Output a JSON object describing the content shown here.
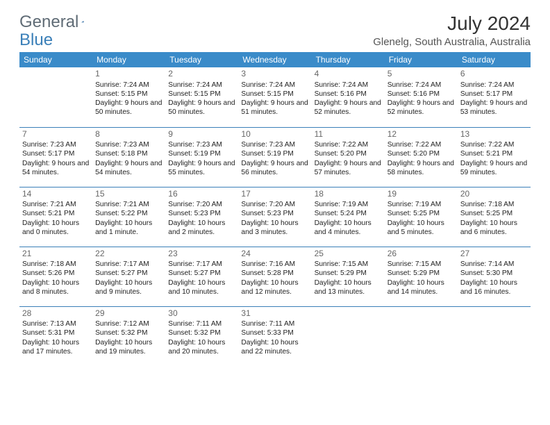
{
  "logo": {
    "part1": "General",
    "part2": "Blue"
  },
  "title": "July 2024",
  "location": "Glenelg, South Australia, Australia",
  "header_bg": "#3a8bc9",
  "header_fg": "#ffffff",
  "rule_color": "#3a7fb8",
  "weekdays": [
    "Sunday",
    "Monday",
    "Tuesday",
    "Wednesday",
    "Thursday",
    "Friday",
    "Saturday"
  ],
  "first_weekday_index": 1,
  "days": [
    {
      "n": 1,
      "sunrise": "7:24 AM",
      "sunset": "5:15 PM",
      "daylight": "9 hours and 50 minutes."
    },
    {
      "n": 2,
      "sunrise": "7:24 AM",
      "sunset": "5:15 PM",
      "daylight": "9 hours and 50 minutes."
    },
    {
      "n": 3,
      "sunrise": "7:24 AM",
      "sunset": "5:15 PM",
      "daylight": "9 hours and 51 minutes."
    },
    {
      "n": 4,
      "sunrise": "7:24 AM",
      "sunset": "5:16 PM",
      "daylight": "9 hours and 52 minutes."
    },
    {
      "n": 5,
      "sunrise": "7:24 AM",
      "sunset": "5:16 PM",
      "daylight": "9 hours and 52 minutes."
    },
    {
      "n": 6,
      "sunrise": "7:24 AM",
      "sunset": "5:17 PM",
      "daylight": "9 hours and 53 minutes."
    },
    {
      "n": 7,
      "sunrise": "7:23 AM",
      "sunset": "5:17 PM",
      "daylight": "9 hours and 54 minutes."
    },
    {
      "n": 8,
      "sunrise": "7:23 AM",
      "sunset": "5:18 PM",
      "daylight": "9 hours and 54 minutes."
    },
    {
      "n": 9,
      "sunrise": "7:23 AM",
      "sunset": "5:19 PM",
      "daylight": "9 hours and 55 minutes."
    },
    {
      "n": 10,
      "sunrise": "7:23 AM",
      "sunset": "5:19 PM",
      "daylight": "9 hours and 56 minutes."
    },
    {
      "n": 11,
      "sunrise": "7:22 AM",
      "sunset": "5:20 PM",
      "daylight": "9 hours and 57 minutes."
    },
    {
      "n": 12,
      "sunrise": "7:22 AM",
      "sunset": "5:20 PM",
      "daylight": "9 hours and 58 minutes."
    },
    {
      "n": 13,
      "sunrise": "7:22 AM",
      "sunset": "5:21 PM",
      "daylight": "9 hours and 59 minutes."
    },
    {
      "n": 14,
      "sunrise": "7:21 AM",
      "sunset": "5:21 PM",
      "daylight": "10 hours and 0 minutes."
    },
    {
      "n": 15,
      "sunrise": "7:21 AM",
      "sunset": "5:22 PM",
      "daylight": "10 hours and 1 minute."
    },
    {
      "n": 16,
      "sunrise": "7:20 AM",
      "sunset": "5:23 PM",
      "daylight": "10 hours and 2 minutes."
    },
    {
      "n": 17,
      "sunrise": "7:20 AM",
      "sunset": "5:23 PM",
      "daylight": "10 hours and 3 minutes."
    },
    {
      "n": 18,
      "sunrise": "7:19 AM",
      "sunset": "5:24 PM",
      "daylight": "10 hours and 4 minutes."
    },
    {
      "n": 19,
      "sunrise": "7:19 AM",
      "sunset": "5:25 PM",
      "daylight": "10 hours and 5 minutes."
    },
    {
      "n": 20,
      "sunrise": "7:18 AM",
      "sunset": "5:25 PM",
      "daylight": "10 hours and 6 minutes."
    },
    {
      "n": 21,
      "sunrise": "7:18 AM",
      "sunset": "5:26 PM",
      "daylight": "10 hours and 8 minutes."
    },
    {
      "n": 22,
      "sunrise": "7:17 AM",
      "sunset": "5:27 PM",
      "daylight": "10 hours and 9 minutes."
    },
    {
      "n": 23,
      "sunrise": "7:17 AM",
      "sunset": "5:27 PM",
      "daylight": "10 hours and 10 minutes."
    },
    {
      "n": 24,
      "sunrise": "7:16 AM",
      "sunset": "5:28 PM",
      "daylight": "10 hours and 12 minutes."
    },
    {
      "n": 25,
      "sunrise": "7:15 AM",
      "sunset": "5:29 PM",
      "daylight": "10 hours and 13 minutes."
    },
    {
      "n": 26,
      "sunrise": "7:15 AM",
      "sunset": "5:29 PM",
      "daylight": "10 hours and 14 minutes."
    },
    {
      "n": 27,
      "sunrise": "7:14 AM",
      "sunset": "5:30 PM",
      "daylight": "10 hours and 16 minutes."
    },
    {
      "n": 28,
      "sunrise": "7:13 AM",
      "sunset": "5:31 PM",
      "daylight": "10 hours and 17 minutes."
    },
    {
      "n": 29,
      "sunrise": "7:12 AM",
      "sunset": "5:32 PM",
      "daylight": "10 hours and 19 minutes."
    },
    {
      "n": 30,
      "sunrise": "7:11 AM",
      "sunset": "5:32 PM",
      "daylight": "10 hours and 20 minutes."
    },
    {
      "n": 31,
      "sunrise": "7:11 AM",
      "sunset": "5:33 PM",
      "daylight": "10 hours and 22 minutes."
    }
  ],
  "labels": {
    "sunrise": "Sunrise: ",
    "sunset": "Sunset: ",
    "daylight": "Daylight: "
  }
}
